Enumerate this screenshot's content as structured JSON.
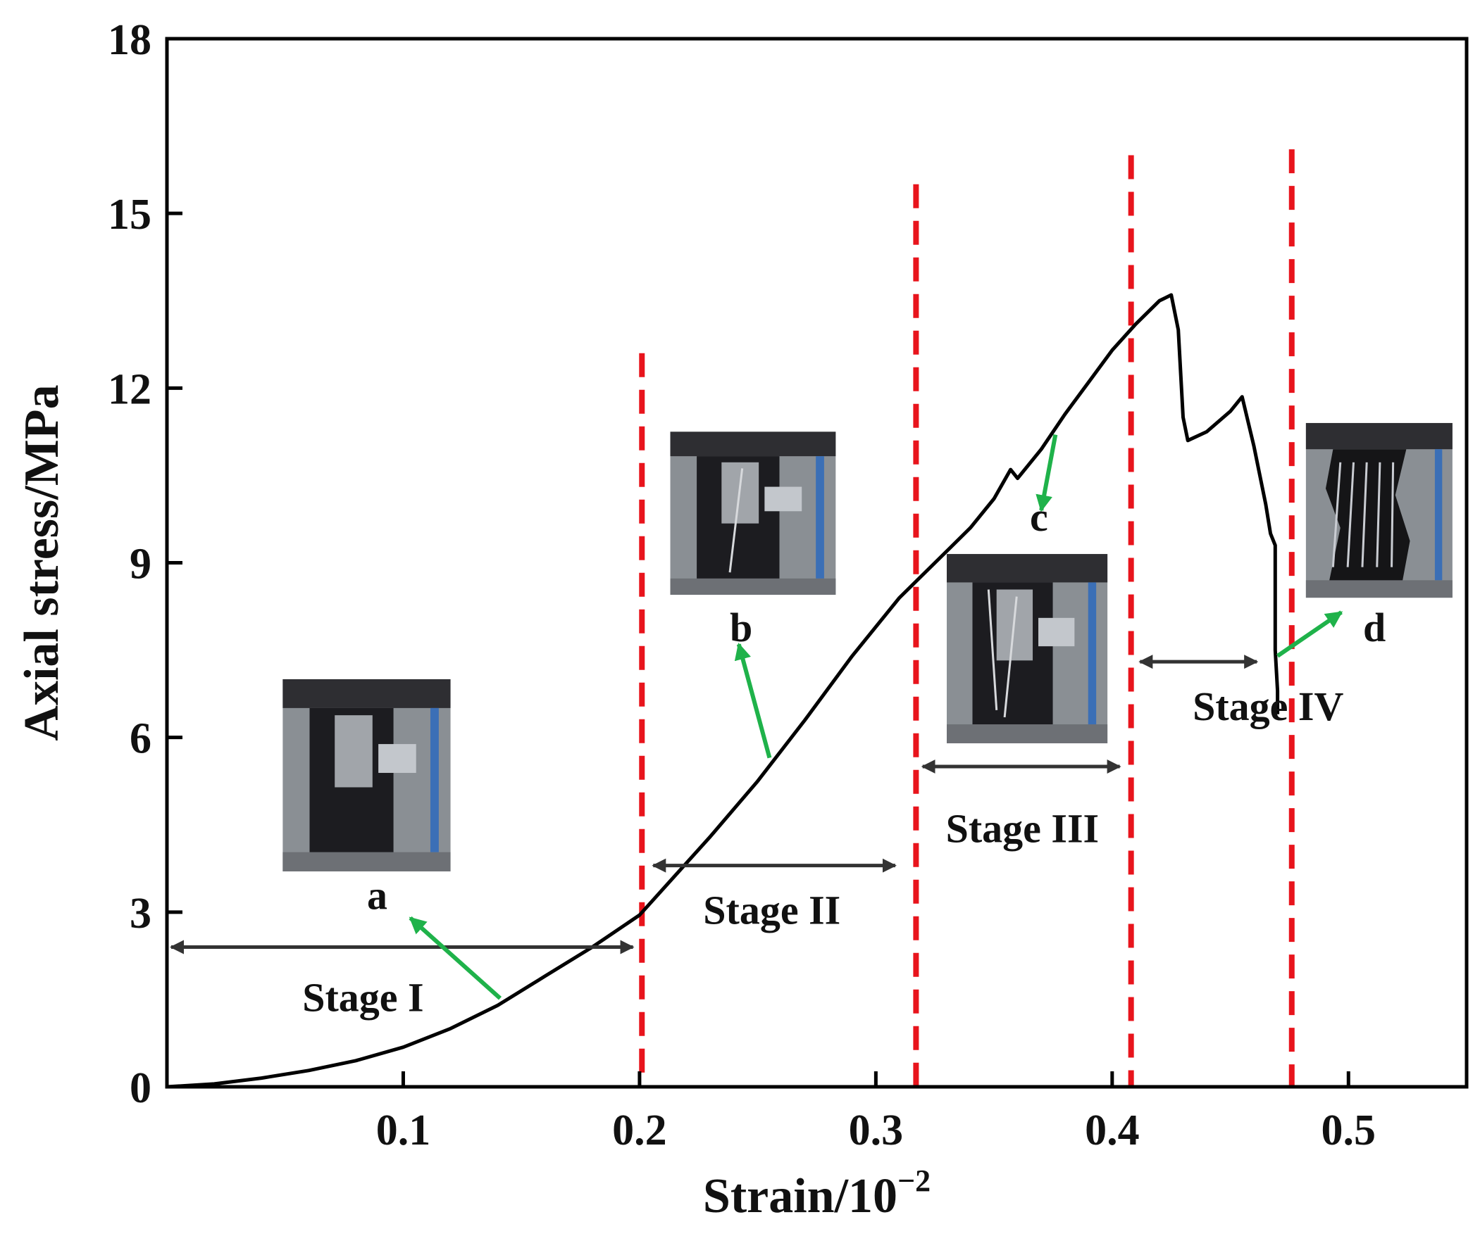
{
  "chart_data": {
    "type": "line",
    "title": "",
    "xlabel": "Strain/10",
    "xlabel_exponent": "−2",
    "ylabel": "Axial stress/MPa",
    "xlim": [
      0.0,
      0.55
    ],
    "ylim": [
      0,
      18
    ],
    "x_ticks": [
      0.1,
      0.2,
      0.3,
      0.4,
      0.5
    ],
    "x_tick_labels": [
      "0.1",
      "0.2",
      "0.3",
      "0.4",
      "0.5"
    ],
    "y_ticks": [
      0,
      3,
      6,
      9,
      12,
      15,
      18
    ],
    "y_tick_labels": [
      "0",
      "3",
      "6",
      "9",
      "12",
      "15",
      "18"
    ],
    "grid": false,
    "legend": "none",
    "series": [
      {
        "name": "Stress-strain curve",
        "color": "#000000",
        "x": [
          0.0,
          0.02,
          0.04,
          0.06,
          0.08,
          0.1,
          0.12,
          0.14,
          0.16,
          0.18,
          0.2,
          0.21,
          0.23,
          0.25,
          0.27,
          0.29,
          0.31,
          0.32,
          0.33,
          0.34,
          0.35,
          0.357,
          0.36,
          0.37,
          0.38,
          0.39,
          0.4,
          0.41,
          0.42,
          0.425,
          0.428,
          0.43,
          0.432,
          0.44,
          0.45,
          0.455,
          0.46,
          0.462,
          0.465,
          0.467,
          0.469,
          0.469,
          0.47,
          0.47
        ],
        "y": [
          0.0,
          0.05,
          0.15,
          0.28,
          0.45,
          0.68,
          1.0,
          1.4,
          1.9,
          2.4,
          2.95,
          3.4,
          4.3,
          5.25,
          6.3,
          7.4,
          8.4,
          8.8,
          9.2,
          9.6,
          10.1,
          10.6,
          10.45,
          10.95,
          11.55,
          12.1,
          12.65,
          13.1,
          13.5,
          13.6,
          13.0,
          11.5,
          11.1,
          11.25,
          11.6,
          11.85,
          11.0,
          10.6,
          10.0,
          9.5,
          9.3,
          7.5,
          6.8,
          6.4
        ]
      }
    ],
    "stage_boundaries_x": [
      0.201,
      0.317,
      0.408,
      0.476
    ],
    "stage_boundary_tops": [
      12.6,
      15.5,
      16.0,
      16.1
    ],
    "stage_boundary_color": "#e8141c",
    "stages": [
      {
        "label": "Stage I",
        "x_start": 0.0,
        "x_end": 0.199,
        "arrow_y": 2.4,
        "label_x": 0.083,
        "label_y": 1.3
      },
      {
        "label": "Stage II",
        "x_start": 0.204,
        "x_end": 0.31,
        "arrow_y": 3.8,
        "label_x": 0.256,
        "label_y": 2.8
      },
      {
        "label": "Stage III",
        "x_start": 0.318,
        "x_end": 0.405,
        "arrow_y": 5.5,
        "label_x": 0.362,
        "label_y": 4.2
      },
      {
        "label": "Stage IV",
        "x_start": 0.41,
        "x_end": 0.463,
        "arrow_y": 7.3,
        "label_x": 0.466,
        "label_y": 6.3
      }
    ],
    "arrow_color": "#333333",
    "annotations": [
      {
        "label": "a",
        "text_x": 0.089,
        "text_y": 3.05,
        "arrow_from": [
          0.141,
          1.52
        ],
        "arrow_to": [
          0.103,
          2.9
        ]
      },
      {
        "label": "b",
        "text_x": 0.243,
        "text_y": 7.65,
        "arrow_from": [
          0.255,
          5.65
        ],
        "arrow_to": [
          0.242,
          7.6
        ]
      },
      {
        "label": "c",
        "text_x": 0.369,
        "text_y": 9.55,
        "arrow_from": [
          0.376,
          11.2
        ],
        "arrow_to": [
          0.37,
          9.9
        ]
      },
      {
        "label": "d",
        "text_x": 0.511,
        "text_y": 7.65,
        "arrow_from": [
          0.47,
          7.4
        ],
        "arrow_to": [
          0.497,
          8.15
        ]
      }
    ],
    "annotation_arrow_color": "#1fb24a",
    "photos": [
      {
        "name": "photo-a",
        "label": "a",
        "x0": 0.049,
        "x1": 0.12,
        "y_top": 7.0,
        "y_bottom": 3.7,
        "state": "intact"
      },
      {
        "name": "photo-b",
        "label": "b",
        "x0": 0.213,
        "x1": 0.283,
        "y_top": 11.25,
        "y_bottom": 8.45,
        "state": "initial-cracking"
      },
      {
        "name": "photo-c",
        "label": "c",
        "x0": 0.33,
        "x1": 0.398,
        "y_top": 9.15,
        "y_bottom": 5.9,
        "state": "crack-propagation"
      },
      {
        "name": "photo-d",
        "label": "d",
        "x0": 0.482,
        "x1": 0.544,
        "y_top": 11.4,
        "y_bottom": 8.4,
        "state": "failure"
      }
    ]
  }
}
